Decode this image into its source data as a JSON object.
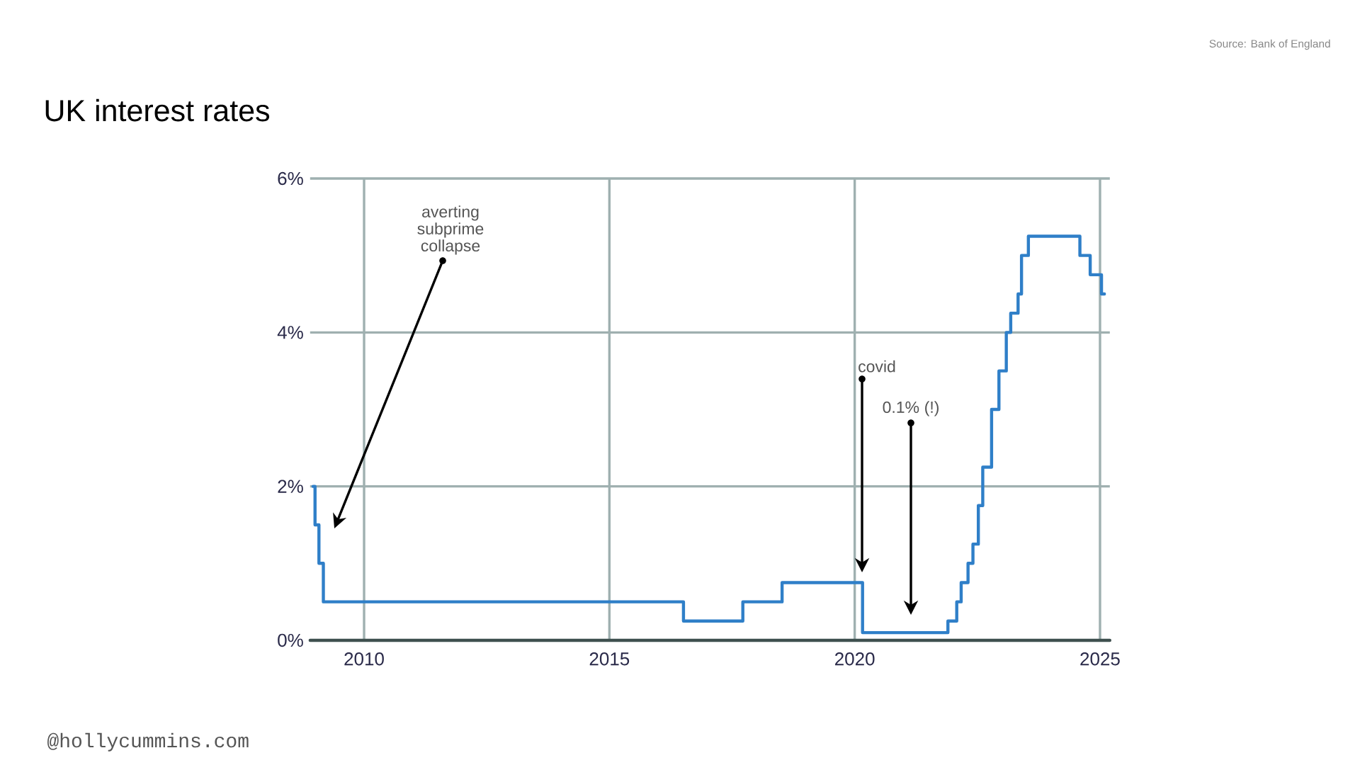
{
  "chart_data": {
    "type": "step",
    "title": "UK interest rates",
    "x": [
      2008.96,
      2009.0,
      2009.08,
      2009.17,
      2016.51,
      2017.72,
      2018.52,
      2020.16,
      2021.9,
      2022.08,
      2022.17,
      2022.31,
      2022.41,
      2022.52,
      2022.61,
      2022.79,
      2022.94,
      2023.09,
      2023.18,
      2023.33,
      2023.4,
      2023.54,
      2024.59,
      2024.8,
      2025.03,
      2025.09
    ],
    "values": [
      2.0,
      1.5,
      1.0,
      0.5,
      0.25,
      0.5,
      0.75,
      0.1,
      0.25,
      0.5,
      0.75,
      1.0,
      1.25,
      1.75,
      2.25,
      3.0,
      3.5,
      4.0,
      4.25,
      4.5,
      5.0,
      5.25,
      5.0,
      4.75,
      4.5,
      4.5
    ],
    "color": "#2f7fc8",
    "xlim": [
      2008.9,
      2025.2
    ],
    "ylim": [
      0,
      6
    ],
    "xticks": [
      2010,
      2015,
      2020,
      2025
    ],
    "yticks": [
      {
        "value": 0,
        "label": "0%"
      },
      {
        "value": 2,
        "label": "2%"
      },
      {
        "value": 4,
        "label": "4%"
      },
      {
        "value": 6,
        "label": "6%"
      }
    ],
    "grid": true,
    "annotations": [
      "Source: Bank of England",
      "averting subprime collapse",
      "covid",
      "0.1% (!)",
      "@hollycummins.com"
    ]
  }
}
